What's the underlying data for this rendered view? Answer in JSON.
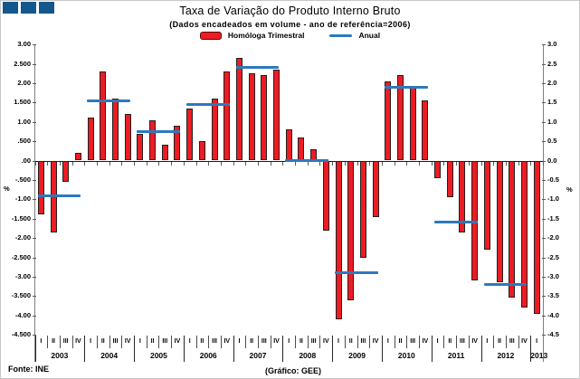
{
  "chart_data": {
    "type": "bar",
    "title": "Taxa de Variação do Produto Interno Bruto",
    "subtitle": "(Dados encadeados em volume -  ano de referência=2006)",
    "legend": [
      {
        "label": "Homóloga Trimestral",
        "swatch": "bar",
        "color": "#ec1c24"
      },
      {
        "label": "Anual",
        "swatch": "line",
        "color": "#2e78bd"
      }
    ],
    "ylabel_left": "%",
    "ylabel_right": "%",
    "ylim": [
      -4.5,
      3.0
    ],
    "ytick_step": 0.5,
    "grid": false,
    "legend_position": "top-center",
    "ytick_labels_left": [
      "3.00",
      "2.500",
      "2.00",
      "1.500",
      "1.00",
      ".500",
      ".00",
      "-.500",
      "-1.00",
      "-1.500",
      "-2.00",
      "-2.500",
      "-3.00",
      "-3.500",
      "-4.00",
      "-4.500"
    ],
    "ytick_labels_right": [
      "3.0",
      "2.5",
      "2.0",
      "1.5",
      "1.0",
      "0.5",
      "0.0",
      "-0.5",
      "-1.0",
      "-1.5",
      "-2.0",
      "-2.5",
      "-3.0",
      "-3.5",
      "-4.0",
      "-4.5"
    ],
    "quarter_labels": [
      "I",
      "II",
      "III",
      "IV"
    ],
    "series": [
      {
        "name": "Homóloga Trimestral",
        "years": [
          {
            "year": "2003",
            "quarterly": [
              -1.4,
              -1.85,
              -0.55,
              0.2
            ]
          },
          {
            "year": "2004",
            "quarterly": [
              1.1,
              2.3,
              1.6,
              1.2
            ]
          },
          {
            "year": "2005",
            "quarterly": [
              0.7,
              1.05,
              0.4,
              0.9
            ]
          },
          {
            "year": "2006",
            "quarterly": [
              1.35,
              0.5,
              1.6,
              2.3
            ]
          },
          {
            "year": "2007",
            "quarterly": [
              2.65,
              2.25,
              2.2,
              2.35
            ]
          },
          {
            "year": "2008",
            "quarterly": [
              0.8,
              0.6,
              0.3,
              -1.8
            ]
          },
          {
            "year": "2009",
            "quarterly": [
              -4.1,
              -3.6,
              -2.5,
              -1.45
            ]
          },
          {
            "year": "2010",
            "quarterly": [
              2.05,
              2.2,
              1.9,
              1.55
            ]
          },
          {
            "year": "2011",
            "quarterly": [
              -0.45,
              -0.95,
              -1.85,
              -3.1
            ]
          },
          {
            "year": "2012",
            "quarterly": [
              -2.3,
              -3.15,
              -3.55,
              -3.8
            ]
          },
          {
            "year": "2013",
            "quarterly": [
              -3.95
            ]
          }
        ]
      },
      {
        "name": "Anual",
        "annual_by_year": {
          "2003": -0.9,
          "2004": 1.55,
          "2005": 0.75,
          "2006": 1.45,
          "2007": 2.4,
          "2008": 0.0,
          "2009": -2.9,
          "2010": 1.9,
          "2011": -1.6,
          "2012": -3.2,
          "2013": null
        }
      }
    ],
    "footer_left": "Fonte: INE",
    "footer_right": "(Gráfico: GEE)",
    "colors": {
      "bar_fill": "#ec1c24",
      "bar_border": "#23201d",
      "annual_line": "#2e78bd",
      "logo_blue": "#14578c"
    }
  }
}
